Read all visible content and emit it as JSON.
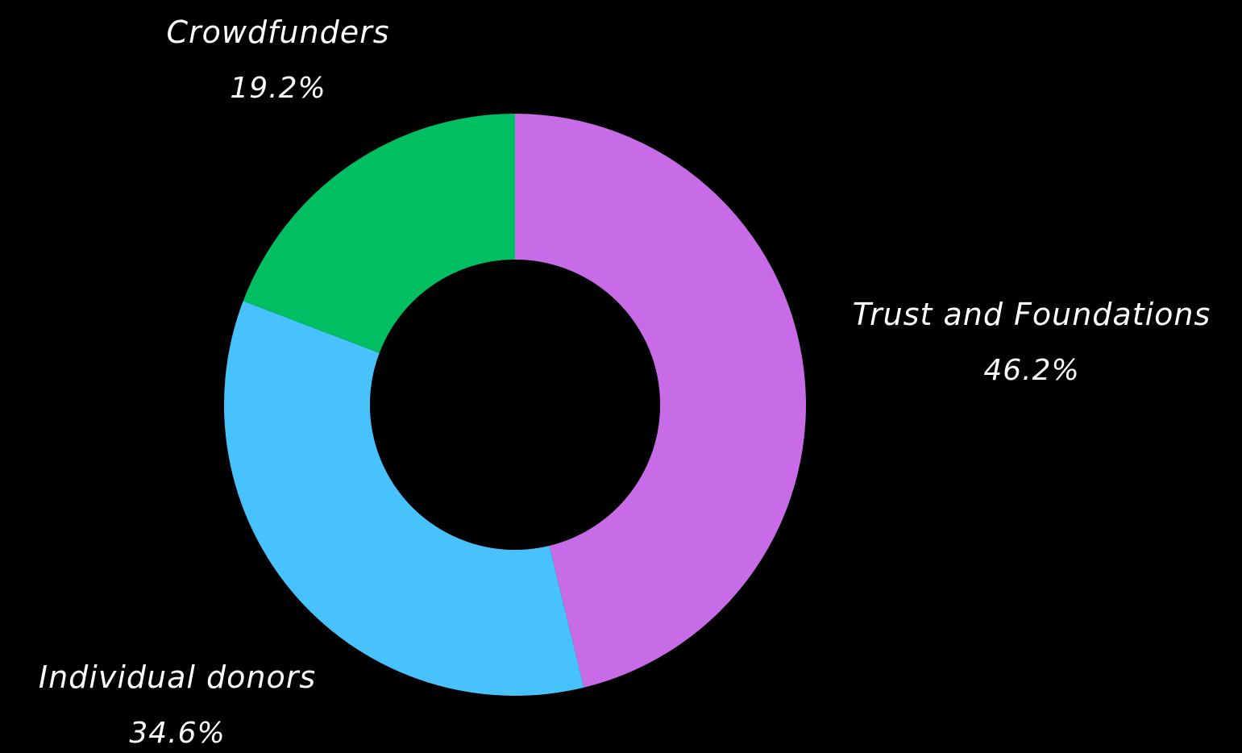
{
  "chart_data": {
    "type": "pie",
    "donut": true,
    "slices": [
      {
        "label": "Trust and Foundations",
        "value": 46.2,
        "percent_label": "46.2%",
        "color": "#c86be6"
      },
      {
        "label": "Individual donors",
        "value": 34.6,
        "percent_label": "34.6%",
        "color": "#48c2fd"
      },
      {
        "label": "Crowdfunders",
        "value": 19.2,
        "percent_label": "19.2%",
        "color": "#00bf63"
      }
    ],
    "background_color": "#000000",
    "label_color": "#ffffff",
    "start_angle": "12 o'clock, clockwise",
    "legend": "none"
  }
}
